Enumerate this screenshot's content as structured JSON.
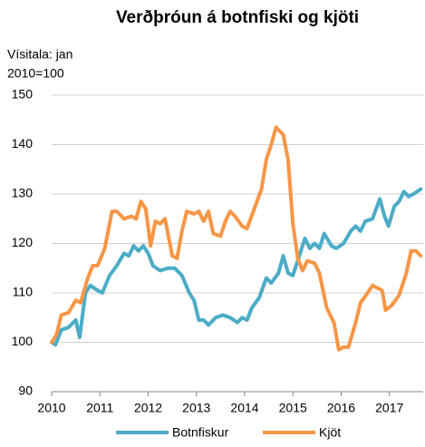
{
  "chart_data": {
    "type": "line",
    "title": "Verðþróun á botnfiski og kjöti",
    "y_label": [
      "Vísitala: jan",
      "2010=100"
    ],
    "xlim": [
      2010,
      2017.7
    ],
    "xticks": [
      2010,
      2011,
      2012,
      2013,
      2014,
      2015,
      2016,
      2017
    ],
    "ylim": [
      90,
      150
    ],
    "yticks": [
      90,
      100,
      110,
      120,
      130,
      140,
      150
    ],
    "grid": true,
    "legend": "bottom",
    "series": [
      {
        "name": "Botnfiskur",
        "color": "#4bacc6",
        "x": [
          2010.0,
          2010.08,
          2010.2,
          2010.35,
          2010.5,
          2010.58,
          2010.7,
          2010.8,
          2010.95,
          2011.05,
          2011.2,
          2011.35,
          2011.5,
          2011.6,
          2011.7,
          2011.8,
          2011.9,
          2012.0,
          2012.1,
          2012.25,
          2012.4,
          2012.55,
          2012.7,
          2012.85,
          2012.95,
          2013.05,
          2013.15,
          2013.25,
          2013.4,
          2013.55,
          2013.7,
          2013.85,
          2013.95,
          2014.05,
          2014.15,
          2014.3,
          2014.45,
          2014.55,
          2014.7,
          2014.8,
          2014.9,
          2015.0,
          2015.15,
          2015.25,
          2015.35,
          2015.45,
          2015.55,
          2015.65,
          2015.8,
          2015.9,
          2016.05,
          2016.2,
          2016.3,
          2016.4,
          2016.5,
          2016.65,
          2016.8,
          2016.9,
          2016.98,
          2017.1,
          2017.2,
          2017.3,
          2017.4,
          2017.5,
          2017.65
        ],
        "values": [
          100,
          99.5,
          102.5,
          103,
          104.5,
          101,
          110,
          111.5,
          110.5,
          110,
          113.5,
          115.5,
          118,
          117.5,
          119.5,
          118.5,
          119.5,
          118,
          115.5,
          114.5,
          115,
          115,
          113.5,
          110,
          108.5,
          104.5,
          104.5,
          103.5,
          105,
          105.5,
          105,
          104,
          105,
          104.5,
          107,
          109,
          113,
          112,
          114,
          117.5,
          114,
          113.5,
          118,
          121,
          119,
          120,
          119,
          122,
          119.5,
          119,
          120,
          122.5,
          123.5,
          122.5,
          124.5,
          125,
          129,
          125.5,
          123.5,
          127.5,
          128.5,
          130.5,
          129.5,
          130,
          131
        ]
      },
      {
        "name": "Kjöt",
        "color": "#f79646",
        "x": [
          2010.0,
          2010.1,
          2010.2,
          2010.35,
          2010.5,
          2010.6,
          2010.75,
          2010.85,
          2010.95,
          2011.1,
          2011.25,
          2011.35,
          2011.5,
          2011.65,
          2011.75,
          2011.85,
          2011.95,
          2012.05,
          2012.15,
          2012.25,
          2012.35,
          2012.5,
          2012.6,
          2012.7,
          2012.8,
          2012.95,
          2013.05,
          2013.15,
          2013.25,
          2013.35,
          2013.5,
          2013.6,
          2013.7,
          2013.8,
          2013.95,
          2014.05,
          2014.2,
          2014.35,
          2014.45,
          2014.55,
          2014.65,
          2014.8,
          2014.9,
          2015.0,
          2015.1,
          2015.2,
          2015.3,
          2015.45,
          2015.55,
          2015.7,
          2015.85,
          2015.95,
          2016.05,
          2016.15,
          2016.3,
          2016.4,
          2016.55,
          2016.65,
          2016.75,
          2016.85,
          2016.92,
          2017.05,
          2017.2,
          2017.35,
          2017.45,
          2017.55,
          2017.65
        ],
        "values": [
          100,
          101.5,
          105.5,
          106,
          108.5,
          108,
          113,
          115.5,
          115.5,
          119,
          126.5,
          126.5,
          125,
          125.5,
          125,
          128.5,
          127,
          119.5,
          124.5,
          124,
          125,
          117.5,
          117,
          122.5,
          126.5,
          126,
          126.5,
          124.5,
          126.5,
          122,
          121.5,
          124.5,
          126.5,
          125.5,
          123.5,
          123,
          127,
          131,
          137,
          140,
          143.5,
          142,
          137,
          124,
          117,
          114.5,
          116.5,
          116,
          114,
          107,
          104,
          98.5,
          99,
          99,
          104,
          108,
          110,
          111.5,
          111,
          110.5,
          106.5,
          107.5,
          109.5,
          114,
          118.5,
          118.5,
          117.5
        ]
      }
    ]
  }
}
